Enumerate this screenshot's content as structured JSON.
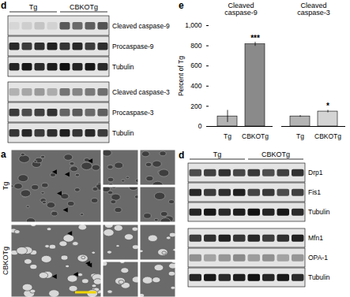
{
  "chart_data": {
    "type": "bar",
    "panel": "e",
    "ylabel": "Percent of Tg",
    "ylim": [
      0,
      1000
    ],
    "yticks": [
      0,
      200,
      400,
      600,
      800,
      1000
    ],
    "groups": [
      {
        "name": "Cleaved caspase-9",
        "categories": [
          "Tg",
          "CBKOTg"
        ],
        "values": [
          100,
          815
        ],
        "errors": [
          60,
          20
        ],
        "significance": [
          null,
          "***"
        ],
        "colors": [
          "#b3b3b3",
          "#8a8a8a"
        ]
      },
      {
        "name": "Cleaved caspase-3",
        "categories": [
          "Tg",
          "CBKOTg"
        ],
        "values": [
          100,
          148
        ],
        "errors": [
          8,
          12
        ],
        "significance": [
          null,
          "*"
        ],
        "colors": [
          "#b3b3b3",
          "#d4d4d4"
        ]
      }
    ]
  },
  "blots": [
    {
      "panel": "d",
      "groups": [
        "Tg",
        "CBKOTg"
      ],
      "lanes_per_group": 4,
      "sections": [
        [
          {
            "label": "Cleaved caspase-9",
            "intensity": [
              0.3,
              0.7
            ]
          },
          {
            "label": "Procaspase-9",
            "intensity": [
              0.85,
              0.85
            ]
          },
          {
            "label": "Tubulin",
            "intensity": [
              0.9,
              0.9
            ]
          }
        ],
        [
          {
            "label": "Cleaved caspase-3",
            "intensity": [
              0.45,
              0.6
            ]
          },
          {
            "label": "Procaspase-3",
            "intensity": [
              0.8,
              0.7
            ]
          },
          {
            "label": "Tubulin",
            "intensity": [
              0.85,
              0.85
            ]
          }
        ]
      ]
    },
    {
      "panel": "d",
      "groups": [
        "Tg",
        "CBKOTg"
      ],
      "lanes_per_group": 4,
      "sections": [
        [
          {
            "label": "Drp1",
            "intensity": [
              0.8,
              0.8
            ]
          },
          {
            "label": "Fis1",
            "intensity": [
              0.85,
              0.8
            ]
          },
          {
            "label": "Tubulin",
            "intensity": [
              0.9,
              0.9
            ]
          }
        ],
        [
          {
            "label": "Mfn1",
            "intensity": [
              0.85,
              0.85
            ]
          },
          {
            "label": "OPA-1",
            "intensity": [
              0.5,
              0.5
            ]
          },
          {
            "label": "Tubulin",
            "intensity": [
              0.9,
              0.9
            ]
          }
        ]
      ]
    }
  ],
  "em": {
    "panel": "a",
    "rows": [
      "Tg",
      "CBKOTg"
    ]
  }
}
